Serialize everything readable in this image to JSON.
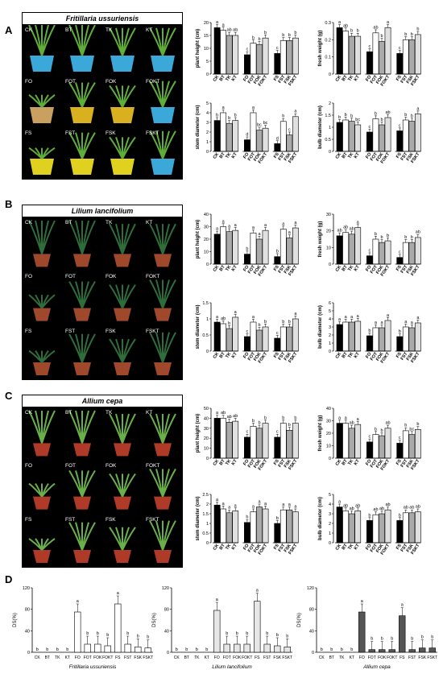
{
  "treatments": [
    "CK",
    "BT",
    "TK",
    "KT",
    "FO",
    "FOT",
    "FOK",
    "FOKT",
    "FS",
    "FST",
    "FSK",
    "FSKT"
  ],
  "panels": [
    {
      "letter": "A",
      "species": "Fritillaria ussuriensis",
      "style": "fill",
      "photo_labels": [
        "CK",
        "BT",
        "TK",
        "KT",
        "FO",
        "FOT",
        "FOK",
        "FOKT",
        "FS",
        "FST",
        "FSK",
        "FSKT"
      ],
      "charts": [
        {
          "ylabel": "plant height (cm)",
          "ylim": [
            0,
            20
          ],
          "yticks": [
            0,
            5,
            10,
            15,
            20
          ],
          "values": [
            18,
            17,
            15,
            15,
            7.5,
            12,
            11.5,
            14,
            8,
            13,
            13,
            14
          ],
          "letters": [
            "a",
            "a",
            "ab",
            "ab",
            "c",
            "b",
            "b",
            "b",
            "c",
            "b",
            "b",
            "b"
          ]
        },
        {
          "ylabel": "fresh weight (g)",
          "ylim": [
            0,
            0.3
          ],
          "yticks": [
            0,
            0.1,
            0.2,
            0.3
          ],
          "values": [
            0.27,
            0.25,
            0.22,
            0.22,
            0.13,
            0.24,
            0.19,
            0.27,
            0.12,
            0.2,
            0.2,
            0.23
          ],
          "letters": [
            "a",
            "ab",
            "b",
            "b",
            "c",
            "ab",
            "b",
            "a",
            "c",
            "b",
            "b",
            "b"
          ]
        },
        {
          "ylabel": "stem diameter (cm)",
          "ylim": [
            0,
            5
          ],
          "yticks": [
            0,
            1,
            2,
            3,
            4,
            5
          ],
          "values": [
            3.2,
            4,
            2.9,
            3.2,
            1.2,
            4,
            2.2,
            2.4,
            0.8,
            3.1,
            1.7,
            3.6
          ],
          "letters": [
            "b",
            "a",
            "b",
            "b",
            "d",
            "a",
            "bc",
            "bc",
            "d",
            "b",
            "c",
            "a"
          ]
        },
        {
          "ylabel": "bulb diameter (cm)",
          "ylim": [
            0,
            2
          ],
          "yticks": [
            0,
            0.5,
            1,
            1.5,
            2
          ],
          "values": [
            1.2,
            1.3,
            1.25,
            1.1,
            0.8,
            1.35,
            1.1,
            1.4,
            0.85,
            1.3,
            1.25,
            1.55
          ],
          "letters": [
            "b",
            "b",
            "b",
            "bc",
            "c",
            "b",
            "b",
            "ab",
            "c",
            "b",
            "b",
            "a"
          ]
        }
      ]
    },
    {
      "letter": "B",
      "species": "Lilium lancifolium",
      "style": "fill",
      "photo_labels": [
        "CK",
        "BT",
        "TK",
        "KT",
        "FO",
        "FOT",
        "FOK",
        "FOKT",
        "FS",
        "FST",
        "FSK",
        "FSKT"
      ],
      "charts": [
        {
          "ylabel": "plant height (cm)",
          "ylim": [
            0,
            40
          ],
          "yticks": [
            0,
            10,
            20,
            30,
            40
          ],
          "values": [
            24,
            30,
            26,
            27,
            8,
            25,
            20,
            27,
            6,
            28,
            21,
            29
          ],
          "letters": [
            "a",
            "a",
            "a",
            "a",
            "b",
            "a",
            "a",
            "a",
            "b",
            "a",
            "a",
            "a"
          ]
        },
        {
          "ylabel": "fresh weight (g)",
          "ylim": [
            0,
            30
          ],
          "yticks": [
            0,
            10,
            20,
            30
          ],
          "values": [
            17,
            19,
            18,
            22,
            5,
            15,
            13,
            14,
            4,
            13,
            13,
            16
          ],
          "letters": [
            "ab",
            "ab",
            "ab",
            "a",
            "c",
            "b",
            "b",
            "b",
            "c",
            "b",
            "b",
            "ab"
          ]
        },
        {
          "ylabel": "stem diameter (cm)",
          "ylim": [
            0,
            1.5
          ],
          "yticks": [
            0,
            0.5,
            1,
            1.5
          ],
          "values": [
            0.9,
            0.85,
            0.7,
            1.05,
            0.45,
            0.9,
            0.65,
            0.75,
            0.4,
            0.75,
            0.75,
            1.0
          ],
          "letters": [
            "a",
            "ab",
            "b",
            "a",
            "c",
            "a",
            "b",
            "b",
            "c",
            "b",
            "b",
            "a"
          ]
        },
        {
          "ylabel": "bulb diameter (cm)",
          "ylim": [
            0,
            6
          ],
          "yticks": [
            0,
            1,
            2,
            3,
            4,
            5,
            6
          ],
          "values": [
            3.3,
            3.6,
            3.6,
            3.7,
            1.9,
            2.9,
            2.9,
            3.8,
            1.8,
            3.0,
            2.9,
            3.5
          ],
          "letters": [
            "a",
            "a",
            "a",
            "a",
            "b",
            "a",
            "a",
            "a",
            "b",
            "a",
            "a",
            "a"
          ]
        }
      ]
    },
    {
      "letter": "C",
      "species": "Allium cepa",
      "style": "fill",
      "photo_labels": [
        "CK",
        "BT",
        "TK",
        "KT",
        "FO",
        "FOT",
        "FOK",
        "FOKT",
        "FS",
        "FST",
        "FSK",
        "FSKT"
      ],
      "charts": [
        {
          "ylabel": "plant height (cm)",
          "ylim": [
            0,
            50
          ],
          "yticks": [
            0,
            10,
            20,
            30,
            40,
            50
          ],
          "values": [
            40,
            40,
            36,
            37,
            21,
            32,
            30,
            35,
            21,
            35,
            28,
            35
          ],
          "letters": [
            "a",
            "ab",
            "ab",
            "ab",
            "c",
            "b",
            "b",
            "b",
            "c",
            "b",
            "b",
            "b"
          ]
        },
        {
          "ylabel": "fresh weight (g)",
          "ylim": [
            0,
            40
          ],
          "yticks": [
            0,
            10,
            20,
            30,
            40
          ],
          "values": [
            28,
            28,
            24,
            27,
            13,
            19,
            18,
            24,
            12,
            22,
            19,
            23
          ],
          "letters": [
            "a",
            "a",
            "ab",
            "a",
            "c",
            "b",
            "b",
            "ab",
            "c",
            "b",
            "bc",
            "b"
          ]
        },
        {
          "ylabel": "stem diameter (cm)",
          "ylim": [
            0,
            2.5
          ],
          "yticks": [
            0,
            0.5,
            1,
            1.5,
            2,
            2.5
          ],
          "values": [
            1.95,
            1.75,
            1.55,
            1.65,
            1.05,
            1.6,
            1.85,
            1.75,
            1.0,
            1.7,
            1.7,
            1.6
          ],
          "letters": [
            "a",
            "a",
            "a",
            "a",
            "b",
            "a",
            "a",
            "a",
            "b",
            "a",
            "a",
            "a"
          ]
        },
        {
          "ylabel": "bulb diameter (cm)",
          "ylim": [
            0,
            5
          ],
          "yticks": [
            0,
            1,
            2,
            3,
            4,
            5
          ],
          "values": [
            3.7,
            3.3,
            3.0,
            3.3,
            2.3,
            2.9,
            3.0,
            3.4,
            2.3,
            3.1,
            3.1,
            3.2
          ],
          "letters": [
            "a",
            "ab",
            "ab",
            "ab",
            "b",
            "ab",
            "ab",
            "ab",
            "b",
            "ab",
            "ab",
            "ab"
          ]
        }
      ]
    }
  ],
  "panel_d": {
    "letter": "D",
    "ylabel": "DS(%)",
    "yticks": [
      0,
      40,
      80,
      120
    ],
    "ylim": [
      0,
      120
    ],
    "categories": [
      "CK",
      "BT",
      "TK",
      "KT",
      "FO",
      "FOT",
      "FOK",
      "FOKT",
      "FS",
      "FST",
      "FSK",
      "FSKT"
    ],
    "charts": [
      {
        "species": "Fritillaria ussuriensis",
        "fill": "#ffffff",
        "values": [
          0,
          0,
          0,
          0,
          75,
          15,
          15,
          12,
          90,
          15,
          10,
          8
        ],
        "letters": [
          "b",
          "b",
          "b",
          "b",
          "a",
          "b",
          "b",
          "b",
          "a",
          "b",
          "b",
          "b"
        ]
      },
      {
        "species": "Lilium lancifolium",
        "fill": "#e6e6e6",
        "values": [
          0,
          0,
          0,
          0,
          78,
          15,
          15,
          15,
          95,
          15,
          12,
          10
        ],
        "letters": [
          "b",
          "b",
          "b",
          "b",
          "a",
          "b",
          "b",
          "b",
          "a",
          "b",
          "b",
          "b"
        ]
      },
      {
        "species": "Allium cepa",
        "fill": "#555555",
        "values": [
          0,
          0,
          0,
          0,
          75,
          5,
          5,
          5,
          68,
          5,
          8,
          8
        ],
        "letters": [
          "b",
          "b",
          "b",
          "b",
          "a",
          "b",
          "b",
          "b",
          "a",
          "b",
          "b",
          "b"
        ]
      }
    ]
  }
}
